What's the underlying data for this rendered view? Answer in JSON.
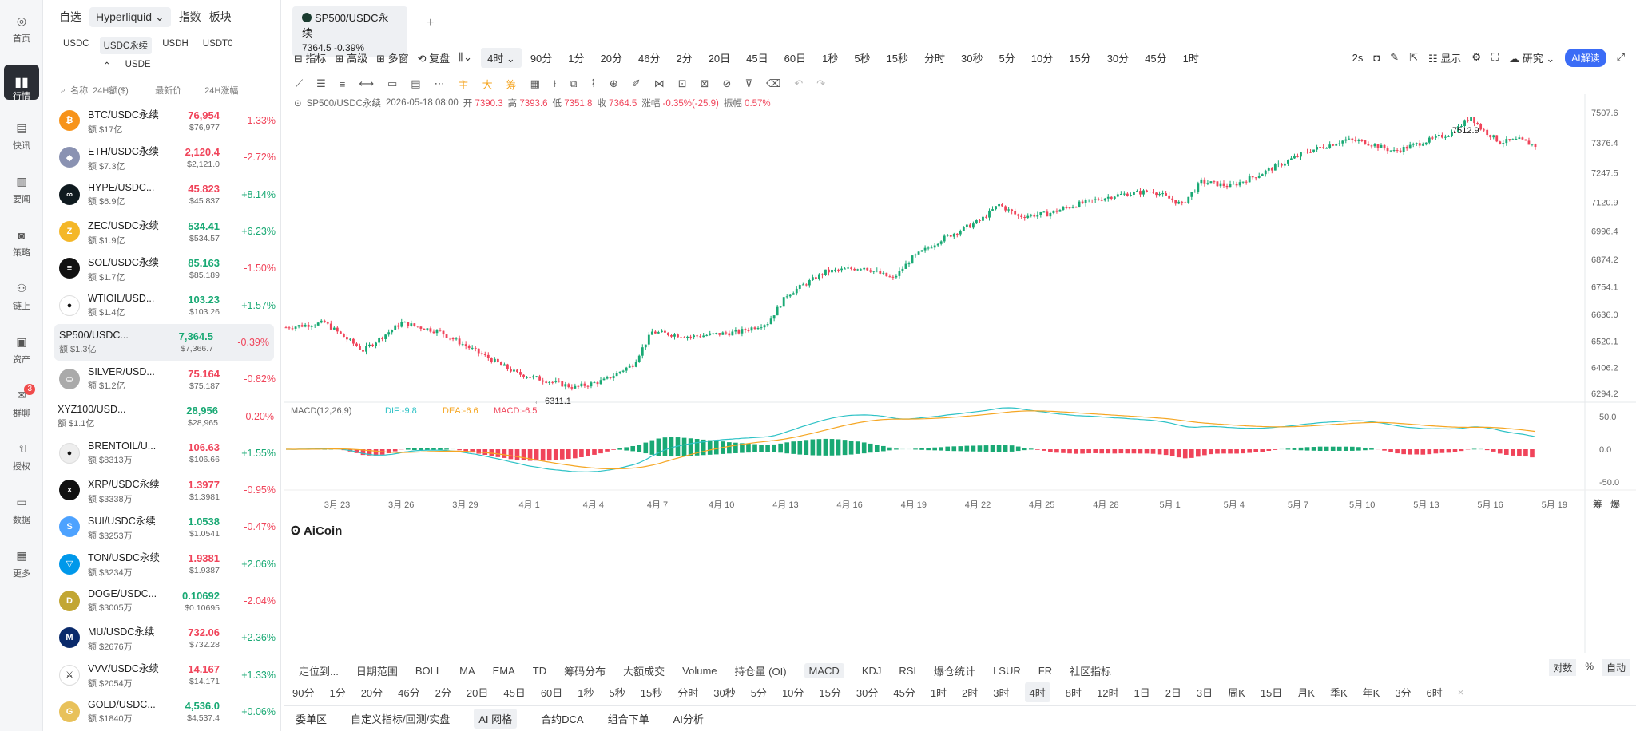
{
  "nav": [
    {
      "label": "首页",
      "icon": "home-icon"
    },
    {
      "label": "行情",
      "icon": "chart-bars-icon",
      "active": true
    },
    {
      "label": "快讯",
      "icon": "news-icon"
    },
    {
      "label": "要闻",
      "icon": "document-icon"
    },
    {
      "label": "策略",
      "icon": "robot-icon"
    },
    {
      "label": "链上",
      "icon": "chain-icon"
    },
    {
      "label": "资产",
      "icon": "wallet-icon"
    },
    {
      "label": "群聊",
      "icon": "chat-icon",
      "badge": "3"
    },
    {
      "label": "授权",
      "icon": "key-icon"
    },
    {
      "label": "数据",
      "icon": "monitor-icon"
    },
    {
      "label": "更多",
      "icon": "grid-icon"
    }
  ],
  "sidebar": {
    "tabs": [
      "自选",
      "Hyperliquid",
      "指数",
      "板块"
    ],
    "subtabs": [
      "USDC",
      "USDC永续",
      "USDH",
      "USDT0",
      "USDE"
    ],
    "headers": {
      "name": "名称",
      "vol": "24H额($)",
      "price": "最新价",
      "chg": "24H涨幅"
    },
    "rows": [
      {
        "name": "BTC/USDC永续",
        "vol": "额 $17亿",
        "price": "76,954",
        "price2": "$76,977",
        "chg": "-1.33%",
        "dir": "dn",
        "color": "#f7931a",
        "sym": "₿"
      },
      {
        "name": "ETH/USDC永续",
        "vol": "额 $7.3亿",
        "price": "2,120.4",
        "price2": "$2,121.0",
        "chg": "-2.72%",
        "dir": "dn",
        "color": "#8a92b2",
        "sym": "◆"
      },
      {
        "name": "HYPE/USDC...",
        "vol": "额 $6.9亿",
        "price": "45.823",
        "price2": "$45.837",
        "chg": "+8.14%",
        "dir": "dn",
        "chgdir": "up",
        "color": "#0f1a1f",
        "sym": "∞"
      },
      {
        "name": "ZEC/USDC永续",
        "vol": "额 $1.9亿",
        "price": "534.41",
        "price2": "$534.57",
        "chg": "+6.23%",
        "dir": "up",
        "color": "#f4b728",
        "sym": "Z"
      },
      {
        "name": "SOL/USDC永续",
        "vol": "额 $1.7亿",
        "price": "85.163",
        "price2": "$85.189",
        "chg": "-1.50%",
        "dir": "up",
        "chgdir": "dn",
        "color": "#111",
        "sym": "≡"
      },
      {
        "name": "WTIOIL/USD...",
        "vol": "额 $1.4亿",
        "price": "103.23",
        "price2": "$103.26",
        "chg": "+1.57%",
        "dir": "up",
        "color": "#fff",
        "sym": "●"
      },
      {
        "name": "SP500/USDC...",
        "vol": "额 $1.3亿",
        "price": "7,364.5",
        "price2": "$7,366.7",
        "chg": "-0.39%",
        "dir": "up",
        "chgdir": "dn",
        "selected": true
      },
      {
        "name": "SILVER/USD...",
        "vol": "额 $1.2亿",
        "price": "75.164",
        "price2": "$75.187",
        "chg": "-0.82%",
        "dir": "dn",
        "color": "#aaa",
        "sym": "⛀"
      },
      {
        "name": "XYZ100/USD...",
        "vol": "额 $1.1亿",
        "price": "28,956",
        "price2": "$28,965",
        "chg": "-0.20%",
        "dir": "up",
        "chgdir": "dn",
        "nocoin": true
      },
      {
        "name": "BRENTOIL/U...",
        "vol": "额 $8313万",
        "price": "106.63",
        "price2": "$106.66",
        "chg": "+1.55%",
        "dir": "dn",
        "chgdir": "up",
        "color": "#eee",
        "sym": "●"
      },
      {
        "name": "XRP/USDC永续",
        "vol": "额 $3338万",
        "price": "1.3977",
        "price2": "$1.3981",
        "chg": "-0.95%",
        "dir": "dn",
        "color": "#111",
        "sym": "x"
      },
      {
        "name": "SUI/USDC永续",
        "vol": "额 $3253万",
        "price": "1.0538",
        "price2": "$1.0541",
        "chg": "-0.47%",
        "dir": "up",
        "chgdir": "dn",
        "color": "#4da2ff",
        "sym": "S"
      },
      {
        "name": "TON/USDC永续",
        "vol": "额 $3234万",
        "price": "1.9381",
        "price2": "$1.9387",
        "chg": "+2.06%",
        "dir": "dn",
        "chgdir": "up",
        "color": "#0098ea",
        "sym": "▽"
      },
      {
        "name": "DOGE/USDC...",
        "vol": "额 $3005万",
        "price": "0.10692",
        "price2": "$0.10695",
        "chg": "-2.04%",
        "dir": "up",
        "chgdir": "dn",
        "color": "#c2a633",
        "sym": "D"
      },
      {
        "name": "MU/USDC永续",
        "vol": "额 $2676万",
        "price": "732.06",
        "price2": "$732.28",
        "chg": "+2.36%",
        "dir": "dn",
        "chgdir": "up",
        "color": "#0a2a6b",
        "sym": "M"
      },
      {
        "name": "VVV/USDC永续",
        "vol": "额 $2054万",
        "price": "14.167",
        "price2": "$14.171",
        "chg": "+1.33%",
        "dir": "dn",
        "chgdir": "up",
        "color": "#fff",
        "sym": "⚔"
      },
      {
        "name": "GOLD/USDC...",
        "vol": "额 $1840万",
        "price": "4,536.0",
        "price2": "$4,537.4",
        "chg": "+0.06%",
        "dir": "up",
        "color": "#e8c15a",
        "sym": "G"
      }
    ]
  },
  "tab": {
    "title": "SP500/USDC永续",
    "sub": "7364.5  -0.39%",
    "add": "+"
  },
  "toolbar": {
    "items": [
      "指标",
      "高级",
      "多窗",
      "复盘"
    ],
    "interval": "4时",
    "intervals": [
      "90分",
      "1分",
      "20分",
      "46分",
      "2分",
      "20日",
      "45日",
      "60日",
      "1秒",
      "5秒",
      "15秒",
      "分时",
      "30秒",
      "5分",
      "10分",
      "15分",
      "30分",
      "45分",
      "1时"
    ],
    "right": {
      "refresh": "2s",
      "display": "显示",
      "research": "研究",
      "ai": "AI解读"
    }
  },
  "info": {
    "sym": "SP500/USDC永续",
    "date": "2026-05-18 08:00",
    "open_l": "开",
    "open": "7390.3",
    "high_l": "高",
    "high": "7393.6",
    "low_l": "低",
    "low": "7351.8",
    "close_l": "收",
    "close": "7364.5",
    "chg_l": "涨幅",
    "chg": "-0.35%(-25.9)",
    "amp_l": "振幅",
    "amp": "0.57%"
  },
  "chart_data": {
    "type": "candlestick",
    "symbol": "SP500/USDC永续",
    "interval": "4时",
    "y_ticks": [
      7507.6,
      7376.4,
      7247.5,
      7120.9,
      6996.4,
      6874.2,
      6754.1,
      6636.0,
      6520.1,
      6406.2,
      6294.2
    ],
    "x_ticks": [
      "3月 23",
      "3月 26",
      "3月 29",
      "4月 1",
      "4月 4",
      "4月 7",
      "4月 10",
      "4月 13",
      "4月 16",
      "4月 19",
      "4月 22",
      "4月 25",
      "4月 28",
      "5月 1",
      "5月 4",
      "5月 7",
      "5月 10",
      "5月 13",
      "5月 16",
      "5月 19"
    ],
    "high_label": "7512.9",
    "low_label": "← 6311.1",
    "path": [
      [
        0,
        6580
      ],
      [
        4,
        6600
      ],
      [
        8,
        6480
      ],
      [
        12,
        6600
      ],
      [
        16,
        6560
      ],
      [
        20,
        6470
      ],
      [
        24,
        6380
      ],
      [
        28,
        6340
      ],
      [
        30,
        6320
      ],
      [
        33,
        6350
      ],
      [
        36,
        6420
      ],
      [
        38,
        6560
      ],
      [
        42,
        6540
      ],
      [
        47,
        6560
      ],
      [
        50,
        6600
      ],
      [
        52,
        6720
      ],
      [
        56,
        6820
      ],
      [
        58,
        6830
      ],
      [
        60,
        6840
      ],
      [
        63,
        6790
      ],
      [
        65,
        6880
      ],
      [
        68,
        6960
      ],
      [
        72,
        7040
      ],
      [
        74,
        7110
      ],
      [
        76,
        7060
      ],
      [
        79,
        7070
      ],
      [
        82,
        7110
      ],
      [
        86,
        7150
      ],
      [
        90,
        7170
      ],
      [
        93,
        7110
      ],
      [
        95,
        7210
      ],
      [
        98,
        7190
      ],
      [
        101,
        7240
      ],
      [
        104,
        7300
      ],
      [
        106,
        7340
      ],
      [
        110,
        7390
      ],
      [
        112,
        7380
      ],
      [
        115,
        7340
      ],
      [
        118,
        7380
      ],
      [
        121,
        7420
      ],
      [
        123,
        7490
      ],
      [
        124,
        7440
      ],
      [
        126,
        7380
      ],
      [
        128,
        7390
      ],
      [
        130,
        7360
      ]
    ],
    "macd": {
      "label": "MACD(12,26,9)",
      "dif": "DIF:-9.8",
      "dea": "DEA:-6.6",
      "macd": "MACD:-6.5",
      "y_ticks": [
        "50.0",
        "0.0",
        "-50.0"
      ]
    }
  },
  "bottom": {
    "row1": [
      "定位到...",
      "日期范围",
      "BOLL",
      "MA",
      "EMA",
      "TD",
      "筹码分布",
      "大额成交",
      "Volume",
      "持仓量 (OI)",
      "MACD",
      "KDJ",
      "RSI",
      "爆仓统计",
      "LSUR",
      "FR",
      "社区指标"
    ],
    "row1_sel": "MACD",
    "row2": [
      "90分",
      "1分",
      "20分",
      "46分",
      "2分",
      "20日",
      "45日",
      "60日",
      "1秒",
      "5秒",
      "15秒",
      "分时",
      "30秒",
      "5分",
      "10分",
      "15分",
      "30分",
      "45分",
      "1时",
      "2时",
      "3时",
      "4时",
      "8时",
      "12时",
      "1日",
      "2日",
      "3日",
      "周K",
      "15日",
      "月K",
      "季K",
      "年K",
      "3分",
      "6时"
    ],
    "row2_sel": "4时",
    "row3": [
      "委单区",
      "自定义指标/回测/实盘",
      "AI 网格",
      "合约DCA",
      "组合下单",
      "AI分析"
    ],
    "row3_sel": "AI 网格",
    "scale": [
      "对数",
      "%",
      "自动"
    ],
    "right_edge": [
      "筹",
      "爆"
    ]
  },
  "logo": "AiCoin",
  "colors": {
    "up": "#19a974",
    "down": "#f0445a",
    "dif": "#2ec2c6",
    "dea": "#f5a623"
  }
}
